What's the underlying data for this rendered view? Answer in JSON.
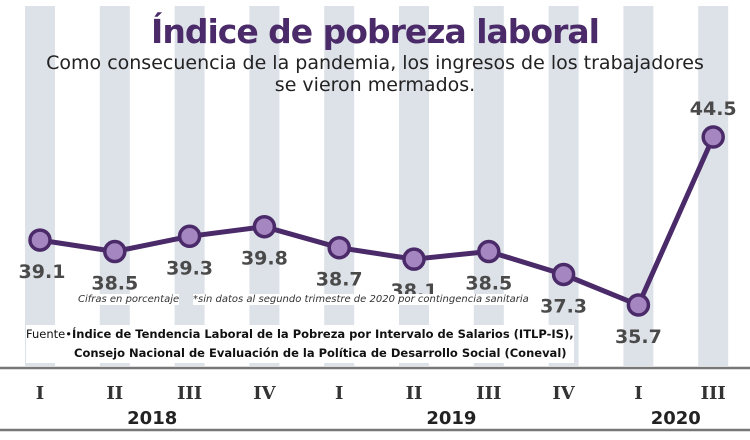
{
  "title": "Índice de pobreza laboral",
  "subtitle_line1": "Como consecuencia de la pandemia, los ingresos de los trabajadores",
  "subtitle_line2": "se vieron mermados.",
  "note_units": "Cifras en porcentaje",
  "note_missing": "*sin datos al segundo trimestre de 2020 por contingencia sanitaria",
  "source_label": "Fuente•",
  "source_line1": "Índice de Tendencia Laboral de la Pobreza por Intervalo de Salarios (ITLP-IS),",
  "source_line2": "Consejo Nacional de Evaluación de la Política de Desarrollo Social (Coneval)",
  "colors": {
    "line": "#4b2a69",
    "marker_fill": "#a586c0",
    "band": "#dde1e8",
    "title": "#4b2a69",
    "label": "#4a4a4a"
  },
  "chart_data": {
    "type": "line",
    "title": "Índice de pobreza laboral",
    "ylabel": "Cifras en porcentaje",
    "ylim": [
      35.0,
      45.0
    ],
    "categories": [
      "I",
      "II",
      "III",
      "IV",
      "I",
      "II",
      "III",
      "IV",
      "I",
      "III"
    ],
    "years": [
      {
        "label": "2018",
        "start": 0,
        "end": 3
      },
      {
        "label": "2019",
        "start": 4,
        "end": 7
      },
      {
        "label": "2020",
        "start": 8,
        "end": 9
      }
    ],
    "series": [
      {
        "name": "Índice de pobreza laboral",
        "values": [
          39.1,
          38.5,
          39.3,
          39.8,
          38.7,
          38.1,
          38.5,
          37.3,
          35.7,
          44.5
        ],
        "labels": [
          "39.1",
          "38.5",
          "39.3",
          "39.8",
          "38.7",
          "38.1",
          "38.5",
          "37.3",
          "35.7",
          "44.5"
        ]
      }
    ],
    "label_side": [
      "below",
      "below",
      "below",
      "below",
      "below",
      "below",
      "below",
      "below",
      "below",
      "above"
    ]
  }
}
